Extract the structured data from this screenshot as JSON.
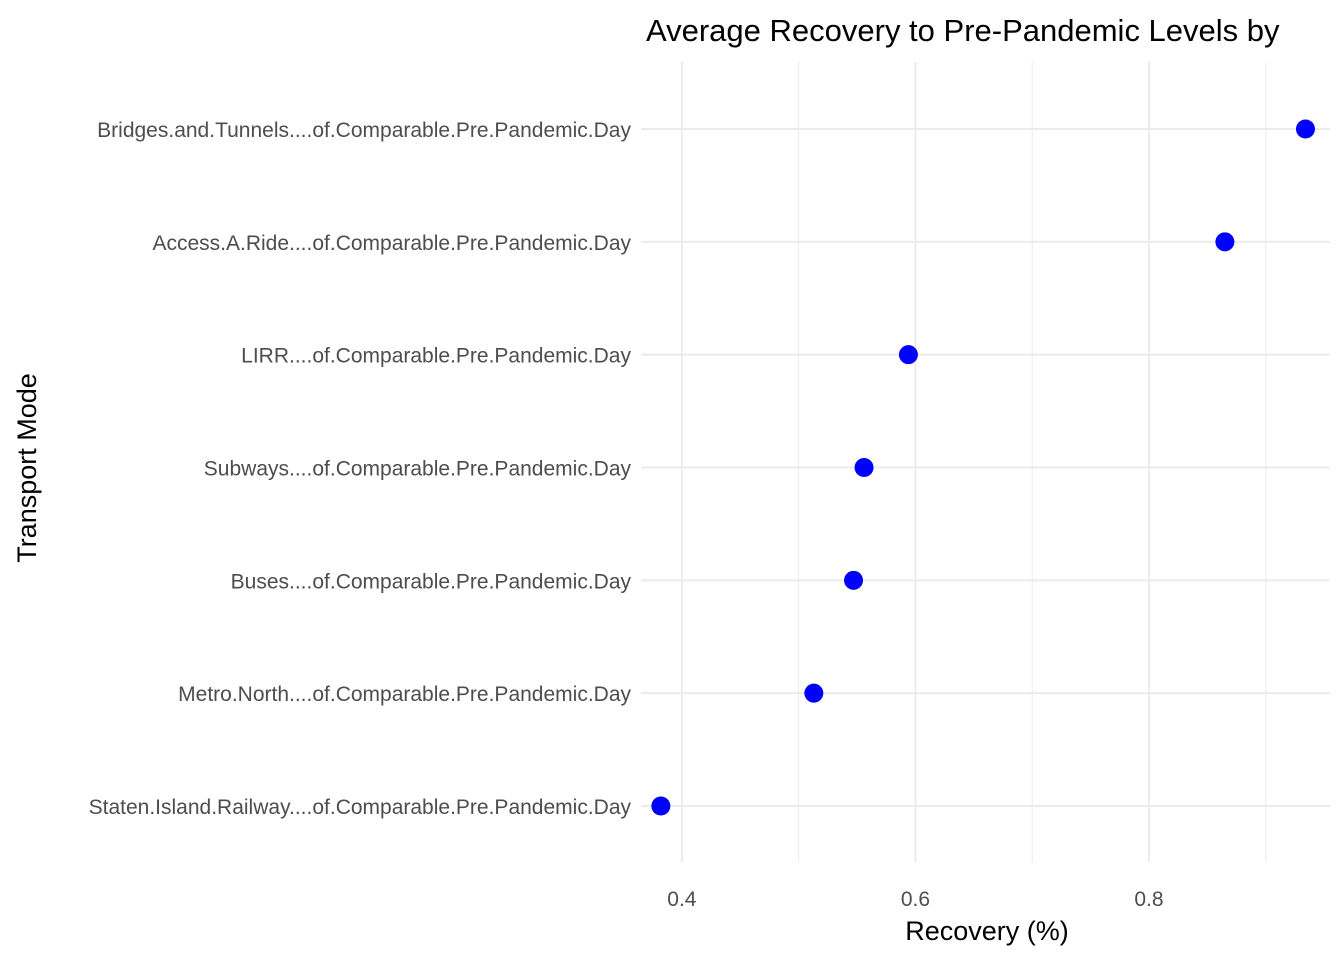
{
  "chart_data": {
    "type": "scatter",
    "title": "Average Recovery to Pre-Pandemic Levels by",
    "xlabel": "Recovery (%)",
    "ylabel": "Transport Mode",
    "xlim": [
      0.365,
      0.955
    ],
    "x_ticks": [
      0.4,
      0.6,
      0.8
    ],
    "x_tick_labels": [
      "0.4",
      "0.6",
      "0.8"
    ],
    "categories": [
      "Bridges.and.Tunnels....of.Comparable.Pre.Pandemic.Day",
      "Access.A.Ride....of.Comparable.Pre.Pandemic.Day",
      "LIRR....of.Comparable.Pre.Pandemic.Day",
      "Subways....of.Comparable.Pre.Pandemic.Day",
      "Buses....of.Comparable.Pre.Pandemic.Day",
      "Metro.North....of.Comparable.Pre.Pandemic.Day",
      "Staten.Island.Railway....of.Comparable.Pre.Pandemic.Day"
    ],
    "values": [
      0.934,
      0.865,
      0.594,
      0.556,
      0.547,
      0.513,
      0.382
    ],
    "grid": true,
    "legend": "none",
    "point_color": "#0000ff"
  }
}
